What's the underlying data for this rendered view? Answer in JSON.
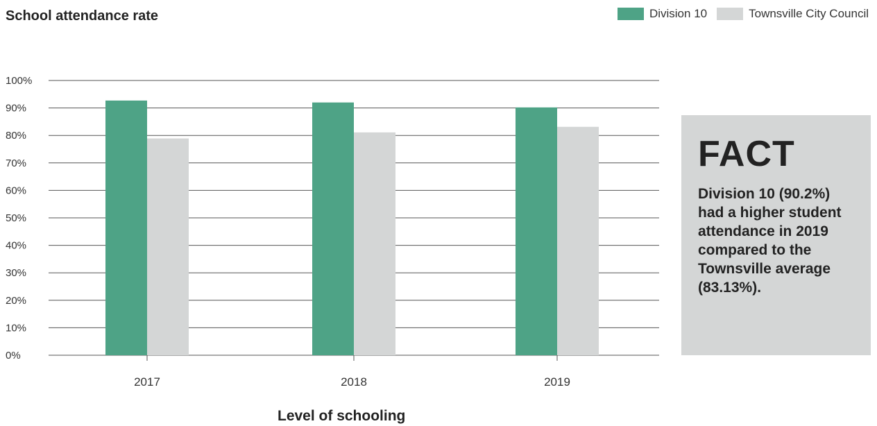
{
  "chart_data": {
    "type": "bar",
    "title": "School attendance rate",
    "xlabel": "Level of schooling",
    "ylabel": "",
    "categories": [
      "2017",
      "2018",
      "2019"
    ],
    "series": [
      {
        "name": "Division 10",
        "values": [
          92.7,
          92.0,
          90.2
        ],
        "color": "#4ea386"
      },
      {
        "name": "Townsville City Council",
        "values": [
          78.9,
          81.1,
          83.13
        ],
        "color": "#d4d6d6"
      }
    ],
    "ylim": [
      0,
      100
    ],
    "yticks": [
      "0%",
      "10%",
      "20%",
      "30%",
      "40%",
      "50%",
      "60%",
      "70%",
      "80%",
      "90%",
      "100%"
    ],
    "grid": true,
    "legend": "top-right"
  },
  "fact": {
    "heading": "FACT",
    "text": "Division 10 (90.2%) had a higher student attendance in 2019 compared to the Townsville average (83.13%)."
  }
}
